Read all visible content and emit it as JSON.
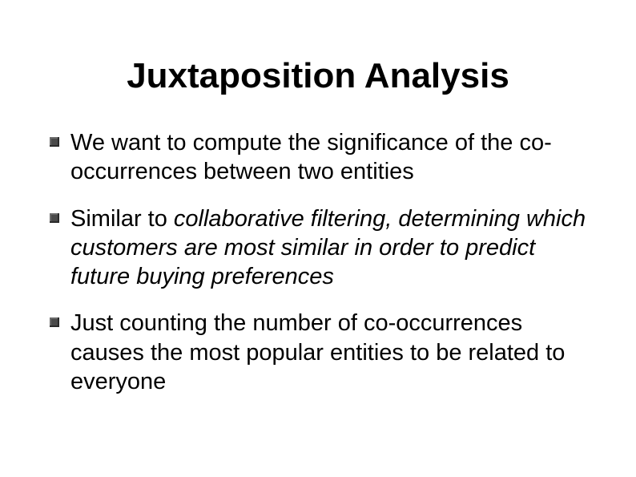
{
  "slide": {
    "title": "Juxtaposition Analysis",
    "bullets": [
      {
        "text": "We want to compute the significance of the co-occurrences between two entities",
        "italic": false
      },
      {
        "prefix": "Similar to ",
        "italic_text": "collaborative filtering, determining which customers are most similar in order to predict future buying preferences"
      },
      {
        "text": "Just counting the number of co-occurrences causes the most popular entities to be related to everyone",
        "italic": false
      }
    ]
  },
  "style": {
    "background_color": "#ffffff",
    "text_color": "#000000",
    "title_fontsize": 44,
    "body_fontsize": 29,
    "bullet_marker_color": "#4a4a4a",
    "font_family": "Arial"
  }
}
